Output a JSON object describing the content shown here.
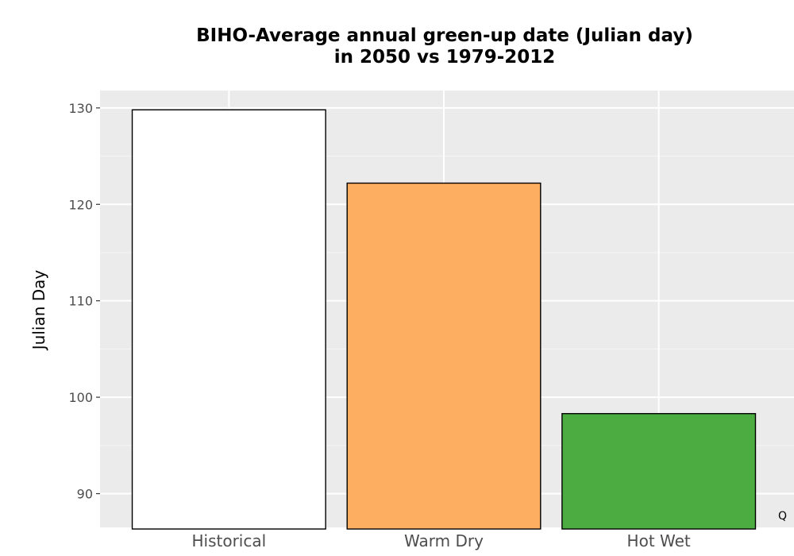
{
  "chart_data": {
    "type": "bar",
    "title_lines": [
      "BIHO-Average annual green-up date (Julian day)",
      "in 2050 vs 1979-2012"
    ],
    "xlabel": "",
    "ylabel": "Julian Day",
    "categories": [
      "Historical",
      "Warm Dry",
      "Hot Wet"
    ],
    "values": [
      129.8,
      122.2,
      98.3
    ],
    "colors": [
      "#ffffff",
      "#fdae61",
      "#4dac41"
    ],
    "ylim": [
      86.5,
      131.8
    ],
    "yticks": [
      90,
      100,
      110,
      120,
      130
    ],
    "grid": true,
    "panel_background": "#ebebeb",
    "corner_mark": "Q"
  }
}
